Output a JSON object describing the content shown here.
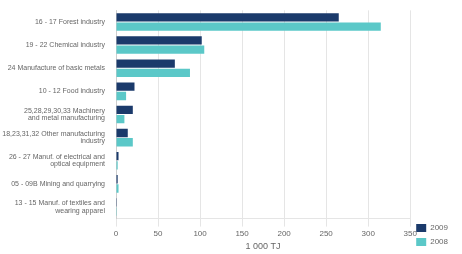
{
  "chart_data": {
    "type": "bar",
    "orientation": "horizontal",
    "categories": [
      "16 - 17 Forest industry",
      "19 - 22 Chemical industry",
      "24 Manufacture of basic metals",
      "10 - 12 Food industry",
      "25,28,29,30,33 Machinery\nand metal manufacturing",
      "18,23,31,32 Other manufacturing\nindustry",
      "26 - 27 Manuf. of electrical and\noptical equipment",
      "05 - 09B Mining and quarrying",
      "13 - 15 Manuf. of textiles and\nwearing apparel"
    ],
    "series": [
      {
        "name": "2009",
        "color": "#1b3a6b",
        "values": [
          265,
          102,
          70,
          22,
          20,
          14,
          3,
          2,
          1
        ]
      },
      {
        "name": "2008",
        "color": "#5bc8c8",
        "values": [
          315,
          105,
          88,
          12,
          10,
          20,
          2,
          3,
          1
        ]
      }
    ],
    "xlabel": "1 000 TJ",
    "xlim": [
      0,
      350
    ],
    "xticks": [
      0,
      50,
      100,
      150,
      200,
      250,
      300,
      350
    ],
    "grid": true,
    "legend": "lower right"
  }
}
